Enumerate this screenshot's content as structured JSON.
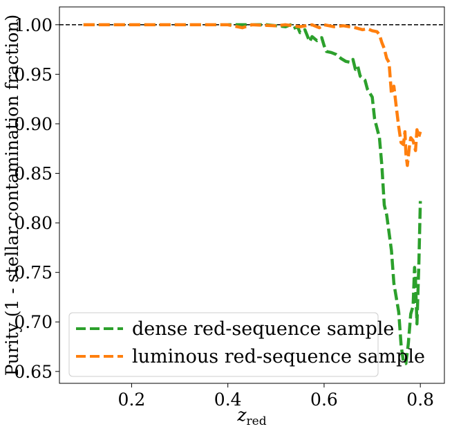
{
  "chart_data": {
    "type": "line",
    "title": "",
    "xlabel_main": "z",
    "xlabel_sub": "red",
    "ylabel": "Purity (1 - stellar contamination fraction)",
    "xlim": [
      0.05,
      0.85
    ],
    "ylim": [
      0.638,
      1.018
    ],
    "xticks": [
      0.2,
      0.4,
      0.6,
      0.8
    ],
    "xtick_labels": [
      "0.2",
      "0.4",
      "0.6",
      "0.8"
    ],
    "yticks": [
      0.65,
      0.7,
      0.75,
      0.8,
      0.85,
      0.9,
      0.95,
      1.0
    ],
    "ytick_labels": [
      "0.65",
      "0.70",
      "0.75",
      "0.80",
      "0.85",
      "0.90",
      "0.95",
      "1.00"
    ],
    "grid": false,
    "legend_position": "lower-left",
    "reference_line": {
      "y": 1.0,
      "style": "dashed",
      "color": "#000000"
    },
    "series": [
      {
        "name": "dense red-sequence sample",
        "color": "#2ca02c",
        "points": [
          [
            0.1,
            1.0
          ],
          [
            0.2,
            1.0
          ],
          [
            0.3,
            1.0
          ],
          [
            0.4,
            1.0
          ],
          [
            0.45,
            1.0
          ],
          [
            0.48,
            1.0
          ],
          [
            0.5,
            0.999
          ],
          [
            0.52,
            0.998
          ],
          [
            0.53,
            1.0
          ],
          [
            0.535,
            0.996
          ],
          [
            0.545,
            0.998
          ],
          [
            0.55,
            0.992
          ],
          [
            0.56,
            0.995
          ],
          [
            0.565,
            0.989
          ],
          [
            0.57,
            0.983
          ],
          [
            0.575,
            0.988
          ],
          [
            0.585,
            0.984
          ],
          [
            0.595,
            0.987
          ],
          [
            0.6,
            0.979
          ],
          [
            0.605,
            0.973
          ],
          [
            0.615,
            0.972
          ],
          [
            0.625,
            0.97
          ],
          [
            0.635,
            0.966
          ],
          [
            0.645,
            0.963
          ],
          [
            0.655,
            0.962
          ],
          [
            0.66,
            0.965
          ],
          [
            0.665,
            0.955
          ],
          [
            0.67,
            0.958
          ],
          [
            0.675,
            0.948
          ],
          [
            0.685,
            0.944
          ],
          [
            0.69,
            0.935
          ],
          [
            0.7,
            0.927
          ],
          [
            0.705,
            0.905
          ],
          [
            0.715,
            0.886
          ],
          [
            0.72,
            0.858
          ],
          [
            0.725,
            0.818
          ],
          [
            0.73,
            0.808
          ],
          [
            0.74,
            0.772
          ],
          [
            0.745,
            0.739
          ],
          [
            0.755,
            0.71
          ],
          [
            0.76,
            0.677
          ],
          [
            0.765,
            0.659
          ],
          [
            0.77,
            0.658
          ],
          [
            0.775,
            0.678
          ],
          [
            0.78,
            0.708
          ],
          [
            0.785,
            0.716
          ],
          [
            0.788,
            0.755
          ],
          [
            0.79,
            0.742
          ],
          [
            0.793,
            0.698
          ],
          [
            0.797,
            0.76
          ],
          [
            0.8,
            0.822
          ]
        ]
      },
      {
        "name": "luminous red-sequence sample",
        "color": "#ff7f0e",
        "points": [
          [
            0.1,
            1.0
          ],
          [
            0.2,
            1.0
          ],
          [
            0.3,
            1.0
          ],
          [
            0.4,
            1.0
          ],
          [
            0.43,
            0.997
          ],
          [
            0.45,
            1.0
          ],
          [
            0.5,
            0.999
          ],
          [
            0.52,
            1.0
          ],
          [
            0.55,
            0.998
          ],
          [
            0.575,
            1.0
          ],
          [
            0.59,
            0.997
          ],
          [
            0.6,
            1.0
          ],
          [
            0.62,
            0.998
          ],
          [
            0.64,
            0.999
          ],
          [
            0.665,
            0.997
          ],
          [
            0.68,
            0.995
          ],
          [
            0.69,
            0.996
          ],
          [
            0.7,
            0.994
          ],
          [
            0.71,
            0.993
          ],
          [
            0.715,
            0.99
          ],
          [
            0.72,
            0.982
          ],
          [
            0.725,
            0.976
          ],
          [
            0.73,
            0.966
          ],
          [
            0.735,
            0.962
          ],
          [
            0.74,
            0.93
          ],
          [
            0.745,
            0.938
          ],
          [
            0.75,
            0.917
          ],
          [
            0.755,
            0.897
          ],
          [
            0.76,
            0.881
          ],
          [
            0.765,
            0.879
          ],
          [
            0.768,
            0.892
          ],
          [
            0.77,
            0.87
          ],
          [
            0.773,
            0.858
          ],
          [
            0.777,
            0.876
          ],
          [
            0.78,
            0.886
          ],
          [
            0.785,
            0.883
          ],
          [
            0.79,
            0.873
          ],
          [
            0.793,
            0.894
          ],
          [
            0.797,
            0.887
          ],
          [
            0.8,
            0.892
          ]
        ]
      }
    ]
  }
}
